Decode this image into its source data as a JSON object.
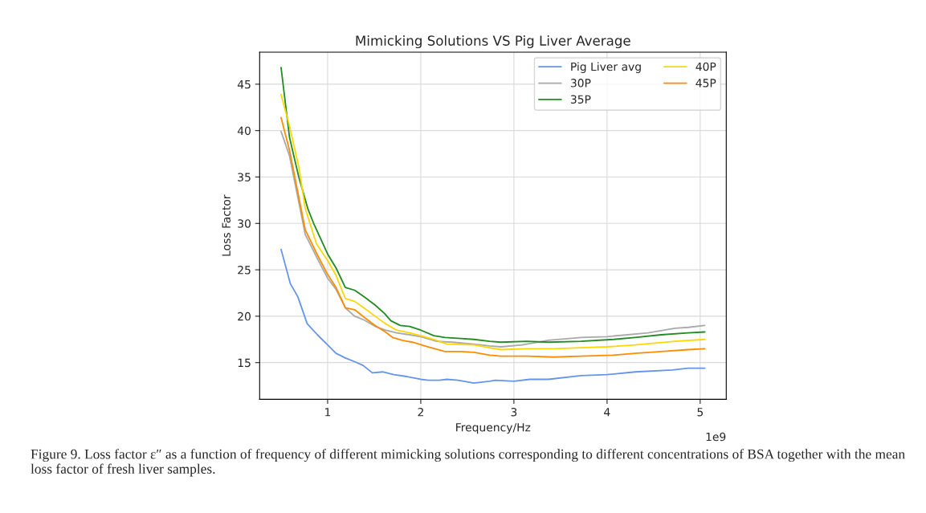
{
  "chart_data": {
    "type": "line",
    "title": "Mimicking Solutions VS Pig Liver Average",
    "xlabel": "Frequency/Hz",
    "ylabel": "Loss Factor",
    "xlim": [
      0.27,
      5.28
    ],
    "ylim": [
      11.05,
      48.45
    ],
    "xticks": [
      1,
      2,
      3,
      4,
      5
    ],
    "yticks": [
      15,
      20,
      25,
      30,
      35,
      40,
      45
    ],
    "grid": true,
    "legend": "top right",
    "marker": "none",
    "line_style": "solid",
    "series": [
      {
        "name": "Pig Liver avg",
        "color": "#6495ed",
        "x": [
          0.5,
          0.6,
          0.68,
          0.78,
          0.89,
          1.0,
          1.09,
          1.19,
          1.29,
          1.38,
          1.48,
          1.59,
          1.71,
          1.85,
          2.0,
          2.08,
          2.2,
          2.28,
          2.4,
          2.57,
          2.74,
          2.8,
          3.0,
          3.17,
          3.37,
          3.72,
          4.0,
          4.3,
          4.7,
          4.87,
          5.05
        ],
        "values": [
          27.2,
          23.5,
          22.1,
          19.2,
          18.0,
          16.9,
          16.0,
          15.5,
          15.1,
          14.7,
          13.9,
          14.0,
          13.7,
          13.5,
          13.2,
          13.1,
          13.1,
          13.2,
          13.1,
          12.8,
          13.0,
          13.1,
          13.0,
          13.2,
          13.2,
          13.6,
          13.7,
          14.0,
          14.2,
          14.4,
          14.4
        ]
      },
      {
        "name": "30P",
        "color": "#a9a9a9",
        "x": [
          0.5,
          0.59,
          0.76,
          0.88,
          1.0,
          1.09,
          1.19,
          1.29,
          1.39,
          1.51,
          1.62,
          1.74,
          1.88,
          2.0,
          2.17,
          2.34,
          2.57,
          2.74,
          2.86,
          3.09,
          3.37,
          3.72,
          4.0,
          4.44,
          4.73,
          4.87,
          5.05
        ],
        "values": [
          39.9,
          37.3,
          28.8,
          26.4,
          24.1,
          22.9,
          20.9,
          20.0,
          19.6,
          18.9,
          18.5,
          18.2,
          18.0,
          17.8,
          17.3,
          17.2,
          17.0,
          16.8,
          16.7,
          16.9,
          17.4,
          17.7,
          17.8,
          18.2,
          18.7,
          18.8,
          19.0
        ]
      },
      {
        "name": "35P",
        "color": "#228b22",
        "x": [
          0.5,
          0.59,
          0.69,
          0.79,
          0.85,
          1.0,
          1.09,
          1.19,
          1.29,
          1.39,
          1.51,
          1.61,
          1.68,
          1.78,
          1.88,
          2.0,
          2.14,
          2.26,
          2.43,
          2.57,
          2.74,
          2.86,
          3.14,
          3.37,
          3.72,
          4.07,
          4.3,
          4.58,
          4.87,
          5.05
        ],
        "values": [
          46.8,
          39.3,
          35.0,
          31.5,
          30.0,
          26.7,
          25.2,
          23.1,
          22.8,
          22.1,
          21.2,
          20.3,
          19.5,
          19.0,
          18.9,
          18.5,
          17.9,
          17.7,
          17.6,
          17.5,
          17.3,
          17.2,
          17.3,
          17.2,
          17.3,
          17.5,
          17.7,
          18.0,
          18.2,
          18.3
        ]
      },
      {
        "name": "40P",
        "color": "#ffd700",
        "x": [
          0.5,
          0.59,
          0.69,
          0.76,
          0.88,
          1.0,
          1.09,
          1.19,
          1.29,
          1.39,
          1.51,
          1.62,
          1.74,
          1.88,
          2.0,
          2.14,
          2.28,
          2.57,
          2.74,
          2.86,
          3.14,
          3.43,
          3.72,
          4.0,
          4.3,
          4.73,
          5.05
        ],
        "values": [
          43.9,
          40.5,
          36.1,
          31.6,
          27.8,
          26.0,
          24.4,
          21.9,
          21.6,
          20.9,
          20.0,
          19.2,
          18.5,
          18.2,
          17.9,
          17.5,
          17.0,
          16.9,
          16.6,
          16.4,
          16.5,
          16.5,
          16.6,
          16.7,
          16.9,
          17.3,
          17.5
        ]
      },
      {
        "name": "45P",
        "color": "#ff8c00",
        "x": [
          0.5,
          0.59,
          0.76,
          0.88,
          1.0,
          1.09,
          1.19,
          1.29,
          1.39,
          1.51,
          1.62,
          1.7,
          1.8,
          1.91,
          2.08,
          2.26,
          2.43,
          2.57,
          2.74,
          2.86,
          3.14,
          3.43,
          3.72,
          4.07,
          4.3,
          4.58,
          4.87,
          5.05
        ],
        "values": [
          41.4,
          37.9,
          29.3,
          26.8,
          24.5,
          23.1,
          20.9,
          20.7,
          19.9,
          19.0,
          18.3,
          17.7,
          17.4,
          17.2,
          16.7,
          16.2,
          16.2,
          16.1,
          15.8,
          15.7,
          15.7,
          15.6,
          15.7,
          15.8,
          16.0,
          16.2,
          16.4,
          16.5
        ]
      }
    ],
    "annotations": [
      "1e9",
      "Figure 9. Loss factor ε″ as a function of frequency of different mimicking solutions corresponding to different concentrations of BSA together with the mean loss factor of fresh liver samples."
    ]
  }
}
